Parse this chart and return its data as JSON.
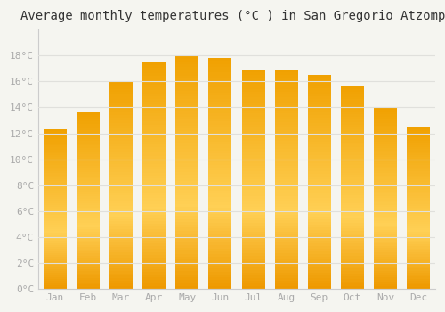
{
  "title": "Average monthly temperatures (°C ) in San Gregorio Atzompa",
  "months": [
    "Jan",
    "Feb",
    "Mar",
    "Apr",
    "May",
    "Jun",
    "Jul",
    "Aug",
    "Sep",
    "Oct",
    "Nov",
    "Dec"
  ],
  "values": [
    12.3,
    13.6,
    16.0,
    17.5,
    18.0,
    17.8,
    16.9,
    16.9,
    16.5,
    15.6,
    14.0,
    12.5
  ],
  "bar_color_bottom": "#F5A800",
  "bar_color_mid": "#FFCC44",
  "bar_color_top": "#F5A800",
  "background_color": "#F5F5F0",
  "plot_bg_color": "#F5F5F0",
  "grid_color": "#E0E0DC",
  "ylim": [
    0,
    20
  ],
  "yticks": [
    0,
    2,
    4,
    6,
    8,
    10,
    12,
    14,
    16,
    18
  ],
  "ytick_labels": [
    "0°C",
    "2°C",
    "4°C",
    "6°C",
    "8°C",
    "10°C",
    "12°C",
    "14°C",
    "16°C",
    "18°C"
  ],
  "title_fontsize": 10,
  "tick_fontsize": 8,
  "tick_color": "#AAAAAA",
  "font_family": "monospace",
  "bar_width": 0.7
}
